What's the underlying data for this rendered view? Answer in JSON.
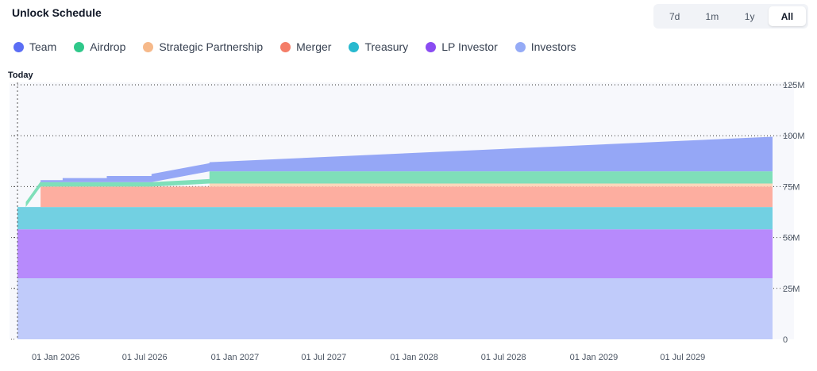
{
  "title": "Unlock Schedule",
  "ranges": [
    {
      "label": "7d",
      "active": false
    },
    {
      "label": "1m",
      "active": false
    },
    {
      "label": "1y",
      "active": false
    },
    {
      "label": "All",
      "active": true
    }
  ],
  "legend": [
    {
      "name": "Team",
      "color": "#5b6ef5"
    },
    {
      "name": "Airdrop",
      "color": "#2fc88a"
    },
    {
      "name": "Strategic Partnership",
      "color": "#f6b98a"
    },
    {
      "name": "Merger",
      "color": "#f47d68"
    },
    {
      "name": "Treasury",
      "color": "#28b9cf"
    },
    {
      "name": "LP Investor",
      "color": "#8a4cf2"
    },
    {
      "name": "Investors",
      "color": "#95abf6"
    }
  ],
  "today_label": "Today",
  "chart_data": {
    "type": "area",
    "stacked": true,
    "title": "Unlock Schedule",
    "x_domain": [
      "2025-10-15",
      "2029-12-31"
    ],
    "x_ticks": [
      "01 Jan 2026",
      "01 Jul 2026",
      "01 Jan 2027",
      "01 Jul 2027",
      "01 Jan 2028",
      "01 Jul 2028",
      "01 Jan 2029",
      "01 Jul 2029"
    ],
    "y_ticks": [
      "0",
      "25M",
      "50M",
      "75M",
      "100M",
      "125M"
    ],
    "ylim": [
      0,
      125
    ],
    "y_unit": "M",
    "series": [
      {
        "name": "Investors",
        "color": "#c0cbfa",
        "points": [
          [
            "2025-10-15",
            30
          ],
          [
            "2029-12-31",
            30
          ]
        ]
      },
      {
        "name": "LP Investor",
        "color": "#b78afc",
        "points": [
          [
            "2025-10-15",
            24
          ],
          [
            "2029-12-31",
            24
          ]
        ]
      },
      {
        "name": "Treasury",
        "color": "#72d0e2",
        "points": [
          [
            "2025-10-15",
            11
          ],
          [
            "2029-12-31",
            11
          ]
        ]
      },
      {
        "name": "Merger",
        "color": "#fdaea0",
        "points": [
          [
            "2025-10-15",
            0
          ],
          [
            "2025-12-01",
            0
          ],
          [
            "2025-12-01",
            10
          ],
          [
            "2029-12-31",
            10
          ]
        ]
      },
      {
        "name": "Strategic Partnership",
        "color": "#fbd7ba",
        "points": [
          [
            "2025-10-15",
            0
          ],
          [
            "2026-11-10",
            0
          ],
          [
            "2026-11-10",
            1.5
          ],
          [
            "2029-12-31",
            1.5
          ]
        ]
      },
      {
        "name": "Airdrop",
        "color": "#7fdfb9",
        "points": [
          [
            "2025-10-15",
            0
          ],
          [
            "2025-11-01",
            0
          ],
          [
            "2025-11-01",
            2.5
          ],
          [
            "2025-12-01",
            2.5
          ],
          [
            "2025-12-01",
            2.2
          ],
          [
            "2026-11-10",
            2.2
          ],
          [
            "2026-11-10",
            6
          ],
          [
            "2029-12-31",
            6
          ]
        ]
      },
      {
        "name": "Team",
        "color": "#95a7f6",
        "points": [
          [
            "2025-10-15",
            0
          ],
          [
            "2025-12-01",
            0
          ],
          [
            "2025-12-01",
            1
          ],
          [
            "2026-01-15",
            1
          ],
          [
            "2026-01-15",
            2
          ],
          [
            "2026-04-15",
            2
          ],
          [
            "2026-04-15",
            3
          ],
          [
            "2026-07-15",
            3
          ],
          [
            "2026-07-15",
            4
          ],
          [
            "2026-11-10",
            4
          ],
          [
            "2026-11-10",
            4.5
          ],
          [
            "2029-12-31",
            17
          ]
        ]
      }
    ]
  }
}
